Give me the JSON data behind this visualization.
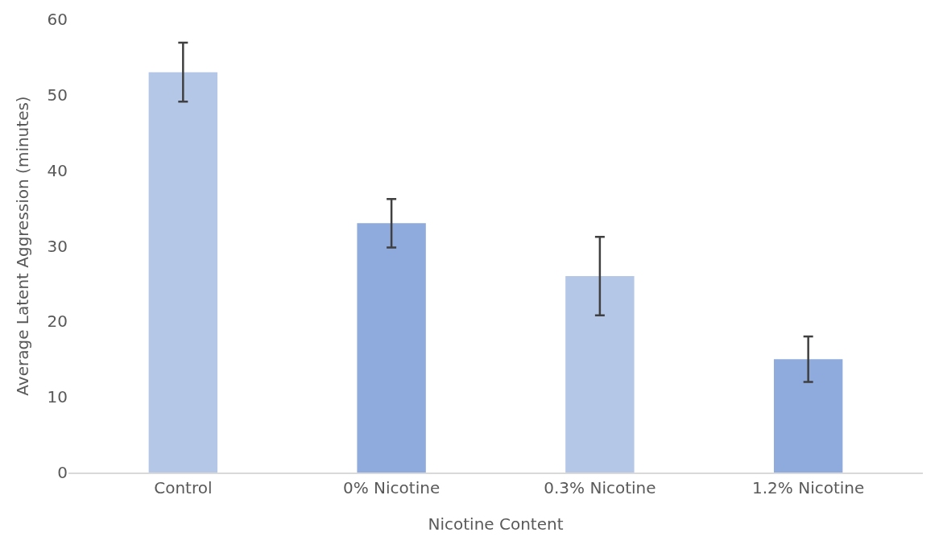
{
  "chart_data": {
    "type": "bar",
    "xlabel": "Nicotine Content",
    "ylabel": "Average Latent Aggression (minutes)",
    "categories": [
      "Control",
      "0% Nicotine",
      "0.3% Nicotine",
      "1.2% Nicotine"
    ],
    "values": [
      53,
      33,
      26,
      15
    ],
    "colors": [
      "#b4c7e7",
      "#8faadc",
      "#b4c7e7",
      "#8faadc"
    ],
    "errors": [
      3.9,
      3.2,
      5.2,
      3
    ],
    "ylim": [
      0,
      60
    ],
    "yticks": [
      0,
      10,
      20,
      30,
      40,
      50,
      60
    ],
    "grid": false
  }
}
